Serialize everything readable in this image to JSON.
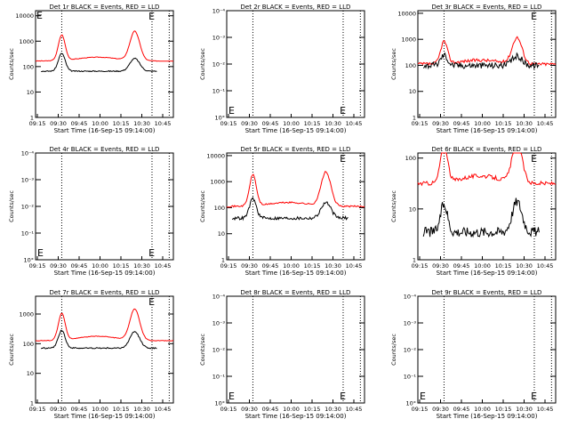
{
  "common": {
    "xlabel": "Start Time (16-Sep-15 09:14:00)",
    "ylabel": "Counts/sec",
    "xticks": [
      "09:15",
      "09:30",
      "09:45",
      "10:00",
      "10:15",
      "10:30",
      "10:45"
    ],
    "ytick_text": [
      "1",
      "10",
      "100",
      "1000",
      "10000"
    ],
    "flat_ytick_text": [
      "10°",
      "10⁻¹",
      "10⁻²",
      "10⁻³",
      "10⁻⁴"
    ],
    "series_colors": {
      "events": "#000000",
      "lld": "#ff0000"
    },
    "marker": "E"
  },
  "chart_data": [
    {
      "type": "line",
      "title": "Det 1r BLACK = Events, RED = LLD",
      "ylim_log": [
        0,
        4.2
      ],
      "shape": "big",
      "events_base": 1.82,
      "lld_base": 2.22,
      "events_peaks": [
        0.7,
        0.5
      ],
      "lld_peaks": [
        1.0,
        1.15
      ],
      "noise": 0.02
    },
    {
      "type": "line",
      "title": "Det 2r BLACK = Events, RED = LLD",
      "ylim_log": [
        0,
        -4
      ],
      "shape": "empty"
    },
    {
      "type": "line",
      "title": "Det 3r BLACK = Events, RED = LLD",
      "ylim_log": [
        0,
        4.1
      ],
      "shape": "big",
      "events_base": 2.0,
      "lld_base": 2.05,
      "events_peaks": [
        0.4,
        0.35
      ],
      "lld_peaks": [
        0.85,
        1.0
      ],
      "noise": 0.12
    },
    {
      "type": "line",
      "title": "Det 4r BLACK = Events, RED = LLD",
      "ylim_log": [
        0,
        -4
      ],
      "shape": "empty"
    },
    {
      "type": "line",
      "title": "Det 5r BLACK = Events, RED = LLD",
      "ylim_log": [
        0,
        4.1
      ],
      "shape": "big",
      "events_base": 1.6,
      "lld_base": 2.05,
      "events_peaks": [
        0.75,
        0.6
      ],
      "lld_peaks": [
        1.2,
        1.3
      ],
      "noise": 0.06
    },
    {
      "type": "line",
      "title": "Det 6r BLACK = Events, RED = LLD",
      "ylim_log": [
        0,
        2.1
      ],
      "shape": "noisy",
      "events_base": 0.55,
      "lld_base": 1.5,
      "events_peaks": [
        0.55,
        0.6
      ],
      "lld_peaks": [
        0.8,
        0.8
      ],
      "noise": 0.1
    },
    {
      "type": "line",
      "title": "Det 7r BLACK = Events, RED = LLD",
      "ylim_log": [
        0,
        3.6
      ],
      "shape": "big",
      "events_base": 1.85,
      "lld_base": 2.1,
      "events_peaks": [
        0.6,
        0.55
      ],
      "lld_peaks": [
        0.9,
        1.05
      ],
      "noise": 0.02
    },
    {
      "type": "line",
      "title": "Det 8r BLACK = Events, RED = LLD",
      "ylim_log": [
        0,
        -4
      ],
      "shape": "empty"
    },
    {
      "type": "line",
      "title": "Det 9r BLACK = Events, RED = LLD",
      "ylim_log": [
        0,
        -4
      ],
      "shape": "empty"
    }
  ]
}
